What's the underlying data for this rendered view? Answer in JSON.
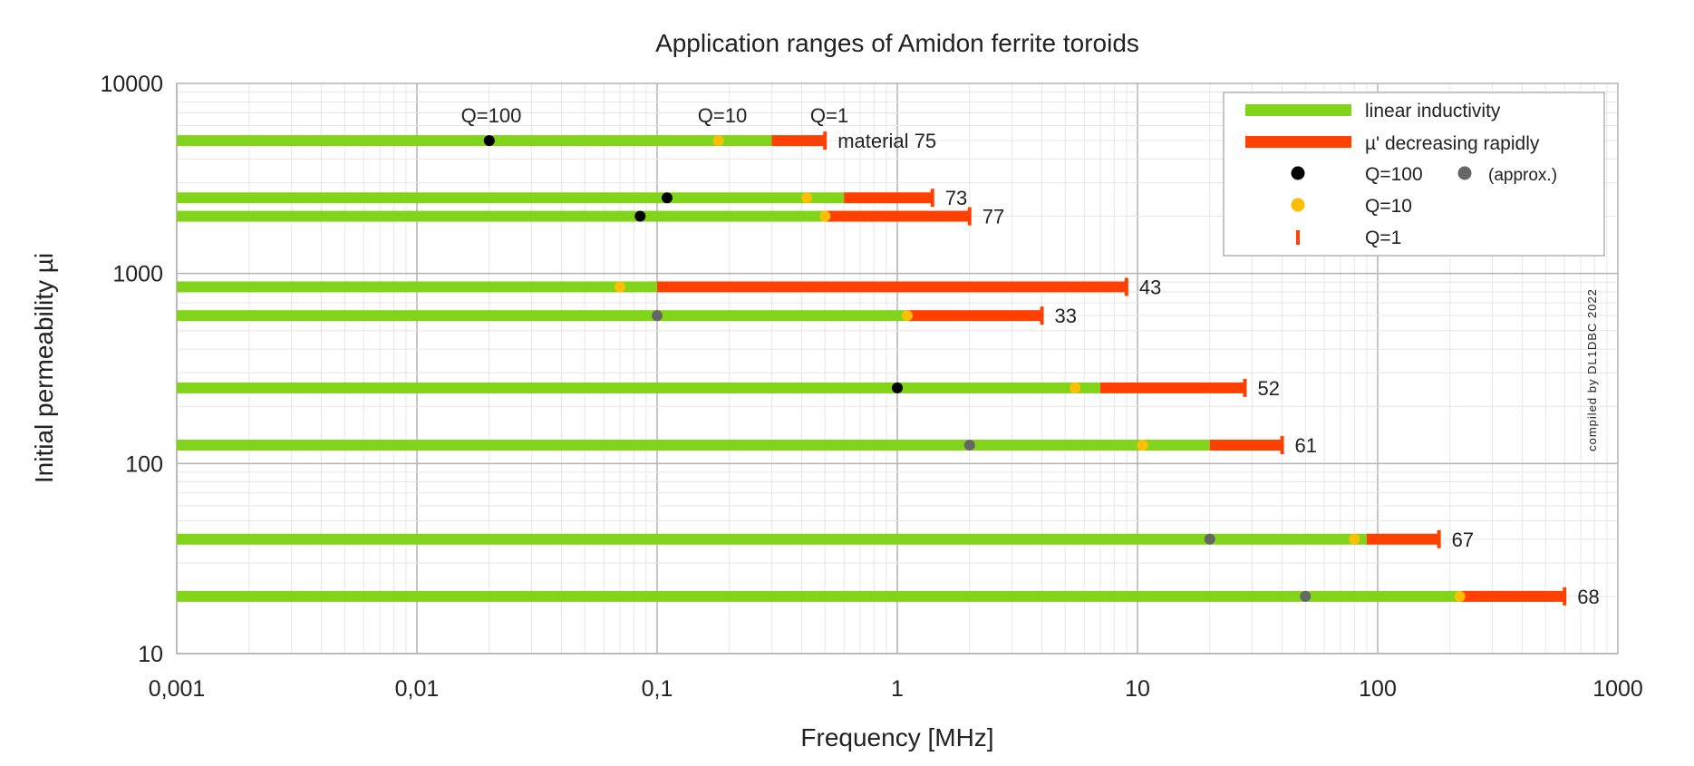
{
  "chart_data": {
    "type": "range-bar",
    "title": "Application ranges of Amidon ferrite toroids",
    "xlabel": "Frequency [MHz]",
    "ylabel": "Initial permeability µi",
    "xscale": "log",
    "yscale": "log",
    "xlim": [
      0.001,
      1000
    ],
    "ylim": [
      10,
      10000
    ],
    "xticks": [
      "0,001",
      "0,01",
      "0,1",
      "1",
      "10",
      "100",
      "1000"
    ],
    "yticks": [
      "10",
      "100",
      "1000",
      "10000"
    ],
    "grid": true,
    "colors": {
      "linear": "#81d41a",
      "decreasing": "#ff4000",
      "q100": "#000000",
      "q100_approx": "#666666",
      "q10": "#ffbf00",
      "q1": "#ff4000"
    },
    "header_labels": {
      "q100": "Q=100",
      "q10": "Q=10",
      "q1": "Q=1"
    },
    "series": [
      {
        "name": "material 75",
        "mu": 5000,
        "start": 0.001,
        "linear_end": 0.3,
        "end": 0.5,
        "q100": 0.02,
        "q100_approx": false,
        "q10": 0.18
      },
      {
        "name": "73",
        "mu": 2500,
        "start": 0.001,
        "linear_end": 0.6,
        "end": 1.4,
        "q100": 0.11,
        "q100_approx": false,
        "q10": 0.42
      },
      {
        "name": "77",
        "mu": 2000,
        "start": 0.001,
        "linear_end": 0.5,
        "end": 2,
        "q100": 0.085,
        "q100_approx": false,
        "q10": 0.5
      },
      {
        "name": "43",
        "mu": 850,
        "start": 0.001,
        "linear_end": 0.1,
        "end": 9,
        "q100": null,
        "q100_approx": false,
        "q10": 0.07
      },
      {
        "name": "33",
        "mu": 600,
        "start": 0.001,
        "linear_end": 1.1,
        "end": 4,
        "q100": 0.1,
        "q100_approx": true,
        "q10": 1.1
      },
      {
        "name": "52",
        "mu": 250,
        "start": 0.001,
        "linear_end": 7,
        "end": 28,
        "q100": 1,
        "q100_approx": false,
        "q10": 5.5
      },
      {
        "name": "61",
        "mu": 125,
        "start": 0.001,
        "linear_end": 20,
        "end": 40,
        "q100": 2,
        "q100_approx": true,
        "q10": 10.5
      },
      {
        "name": "67",
        "mu": 40,
        "start": 0.001,
        "linear_end": 90,
        "end": 180,
        "q100": 20,
        "q100_approx": true,
        "q10": 80
      },
      {
        "name": "68",
        "mu": 20,
        "start": 0.001,
        "linear_end": 220,
        "end": 600,
        "q100": 50,
        "q100_approx": true,
        "q10": 220
      }
    ],
    "legend": {
      "placement": "top-right",
      "items": [
        "linear inductivity",
        "µ' decreasing rapidly",
        "Q=100",
        "(approx.)",
        "Q=10",
        "Q=1"
      ]
    },
    "annotation": "compiled by DL1DBC 2022"
  }
}
